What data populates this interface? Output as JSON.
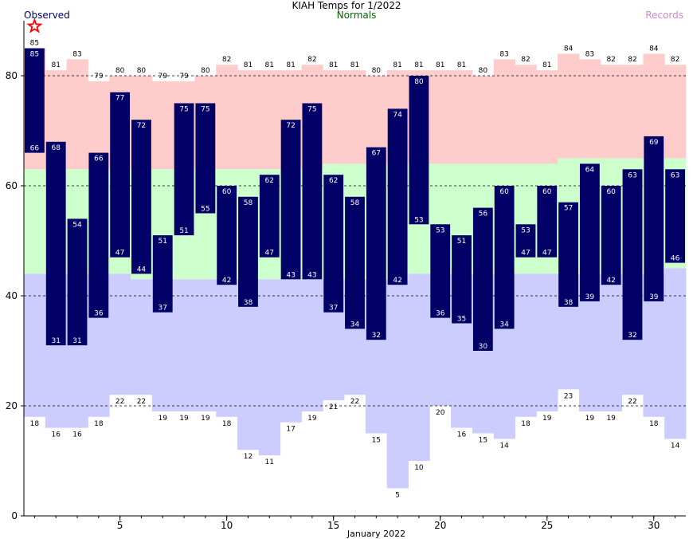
{
  "chart_data": {
    "type": "bar",
    "title": "KIAH Temps for 1/2022",
    "xlabel": "January 2022",
    "ylabel": "",
    "xlim": [
      1,
      31
    ],
    "ylim": [
      0,
      90
    ],
    "x_ticks": [
      5,
      10,
      15,
      20,
      25,
      30
    ],
    "y_ticks": [
      0,
      20,
      40,
      60,
      80
    ],
    "gridlines_y": [
      20,
      40,
      60,
      80
    ],
    "legend": {
      "observed": {
        "label": "Observed",
        "color": "#000066"
      },
      "normals": {
        "label": "Normals",
        "color": "#006600"
      },
      "records": {
        "label": "Records",
        "color": "#cc88cc"
      }
    },
    "colors": {
      "observed_bar": "#000066",
      "record_high_fill": "#ffcccc",
      "normal_fill": "#ccffcc",
      "record_low_fill": "#ccccff",
      "record_marker": "#ff0000"
    },
    "days": [
      1,
      2,
      3,
      4,
      5,
      6,
      7,
      8,
      9,
      10,
      11,
      12,
      13,
      14,
      15,
      16,
      17,
      18,
      19,
      20,
      21,
      22,
      23,
      24,
      25,
      26,
      27,
      28,
      29,
      30,
      31
    ],
    "observed_high": [
      85,
      68,
      54,
      66,
      77,
      72,
      51,
      75,
      75,
      60,
      58,
      62,
      72,
      75,
      62,
      58,
      67,
      74,
      80,
      53,
      51,
      56,
      60,
      53,
      60,
      57,
      64,
      60,
      63,
      69,
      63
    ],
    "observed_low": [
      66,
      31,
      31,
      36,
      47,
      44,
      37,
      51,
      55,
      42,
      38,
      47,
      43,
      43,
      37,
      34,
      32,
      42,
      53,
      36,
      35,
      30,
      34,
      47,
      47,
      38,
      39,
      42,
      32,
      39,
      46
    ],
    "record_high": [
      85,
      81,
      83,
      79,
      80,
      80,
      79,
      79,
      80,
      82,
      81,
      81,
      81,
      82,
      81,
      81,
      80,
      81,
      81,
      81,
      81,
      80,
      83,
      82,
      81,
      84,
      83,
      82,
      82,
      84,
      82
    ],
    "record_low": [
      18,
      16,
      16,
      18,
      22,
      22,
      19,
      19,
      19,
      18,
      12,
      11,
      17,
      19,
      21,
      22,
      15,
      5,
      10,
      20,
      16,
      15,
      14,
      18,
      19,
      23,
      19,
      19,
      22,
      18,
      14
    ],
    "normal_high": [
      63,
      63,
      63,
      63,
      63,
      63,
      63,
      63,
      63,
      63,
      63,
      63,
      63,
      63,
      64,
      64,
      64,
      64,
      64,
      64,
      64,
      64,
      64,
      64,
      64,
      65,
      65,
      65,
      65,
      65,
      65
    ],
    "normal_low": [
      44,
      44,
      44,
      44,
      44,
      43,
      43,
      43,
      43,
      43,
      43,
      43,
      43,
      43,
      43,
      43,
      43,
      43,
      44,
      44,
      44,
      44,
      44,
      44,
      44,
      44,
      44,
      44,
      44,
      44,
      45
    ],
    "record_markers": [
      {
        "day": 1,
        "type": "record-high"
      }
    ]
  }
}
